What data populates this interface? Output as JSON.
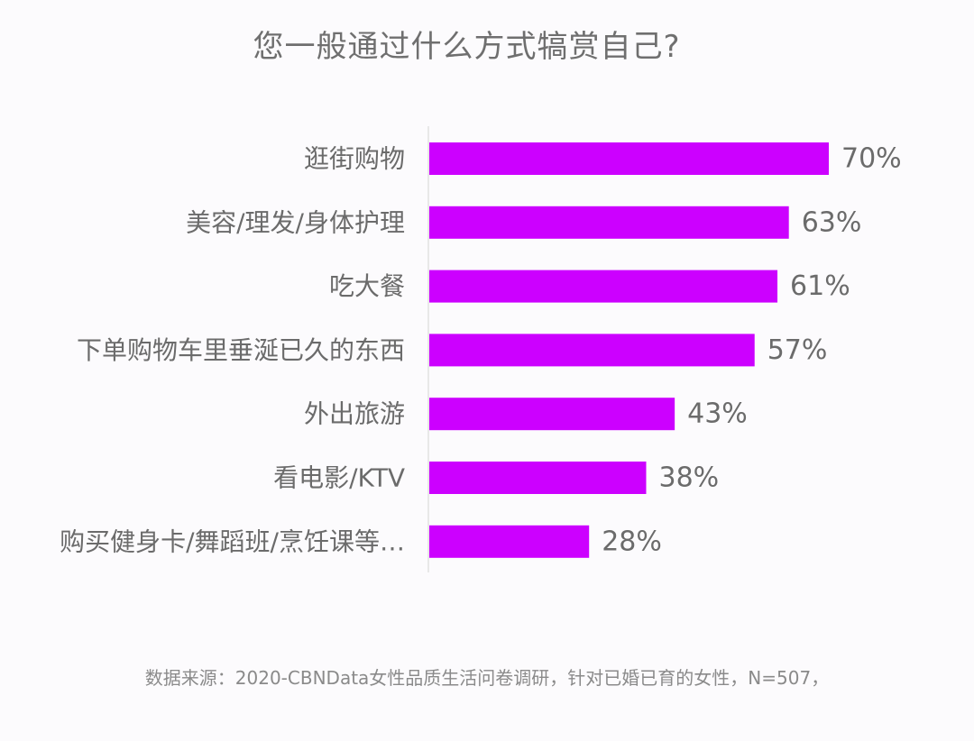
{
  "chart_data": {
    "type": "bar",
    "orientation": "horizontal",
    "title": "您一般通过什么方式犒赏自己?",
    "categories": [
      "逛街购物",
      "美容/理发/身体护理",
      "吃大餐",
      "下单购物车里垂涎已久的东西",
      "外出旅游",
      "看电影/KTV",
      "购买健身卡/舞蹈班/烹饪课等…"
    ],
    "values": [
      70,
      63,
      61,
      57,
      43,
      38,
      28
    ],
    "value_labels": [
      "70%",
      "63%",
      "61%",
      "57%",
      "43%",
      "38%",
      "28%"
    ],
    "unit": "%",
    "xlim": [
      0,
      70
    ],
    "bar_color": "#cc00ff",
    "grid": false,
    "legend": "none",
    "source": "数据来源：2020-CBNData女性品质生活问卷调研，针对已婚已育的女性，N=507，"
  }
}
